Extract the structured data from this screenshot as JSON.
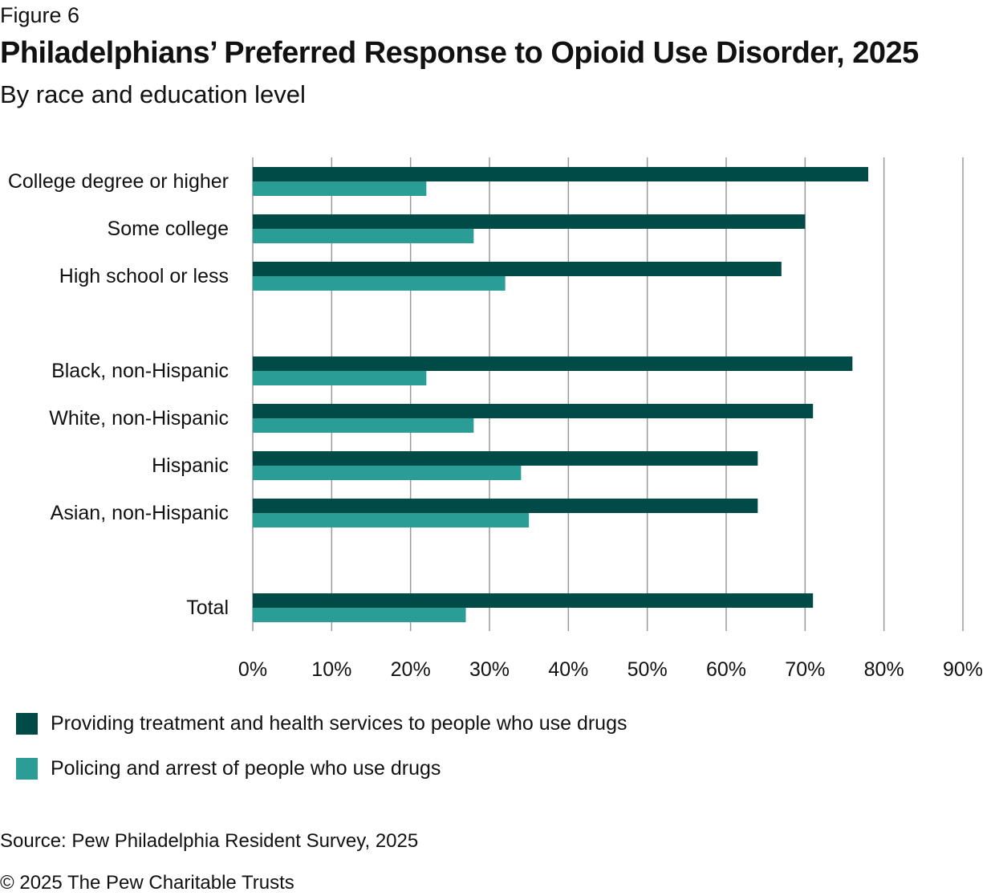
{
  "figure_label": "Figure 6",
  "source": "Source: Pew Philadelphia Resident Survey, 2025",
  "copyright": "© 2025 The Pew Charitable Trusts",
  "colors": {
    "treatment": "#004a47",
    "policing": "#2a9d96",
    "grid": "#9a9a9a"
  },
  "chart_data": {
    "type": "bar",
    "orientation": "horizontal",
    "title": "Philadelphians’ Preferred Response to Opioid Use Disorder, 2025",
    "subtitle": "By race and education level",
    "xlim": [
      0,
      90
    ],
    "xticks": [
      0,
      10,
      20,
      30,
      40,
      50,
      60,
      70,
      80,
      90
    ],
    "tick_suffix": "%",
    "grid": true,
    "legend_position": "bottom-left",
    "groups": [
      {
        "categories": [
          "College degree or higher",
          "Some college",
          "High school or less"
        ]
      },
      {
        "categories": [
          "Black, non-Hispanic",
          "White, non-Hispanic",
          "Hispanic",
          "Asian, non-Hispanic"
        ]
      },
      {
        "categories": [
          "Total"
        ]
      }
    ],
    "categories": [
      "College degree or higher",
      "Some college",
      "High school or less",
      "Black, non-Hispanic",
      "White, non-Hispanic",
      "Hispanic",
      "Asian, non-Hispanic",
      "Total"
    ],
    "series": [
      {
        "name": "Providing treatment and health services to people who use drugs",
        "values": [
          78,
          70,
          67,
          76,
          71,
          64,
          64,
          71
        ]
      },
      {
        "name": "Policing and arrest of people who use drugs",
        "values": [
          22,
          28,
          32,
          22,
          28,
          34,
          35,
          27
        ]
      }
    ]
  }
}
